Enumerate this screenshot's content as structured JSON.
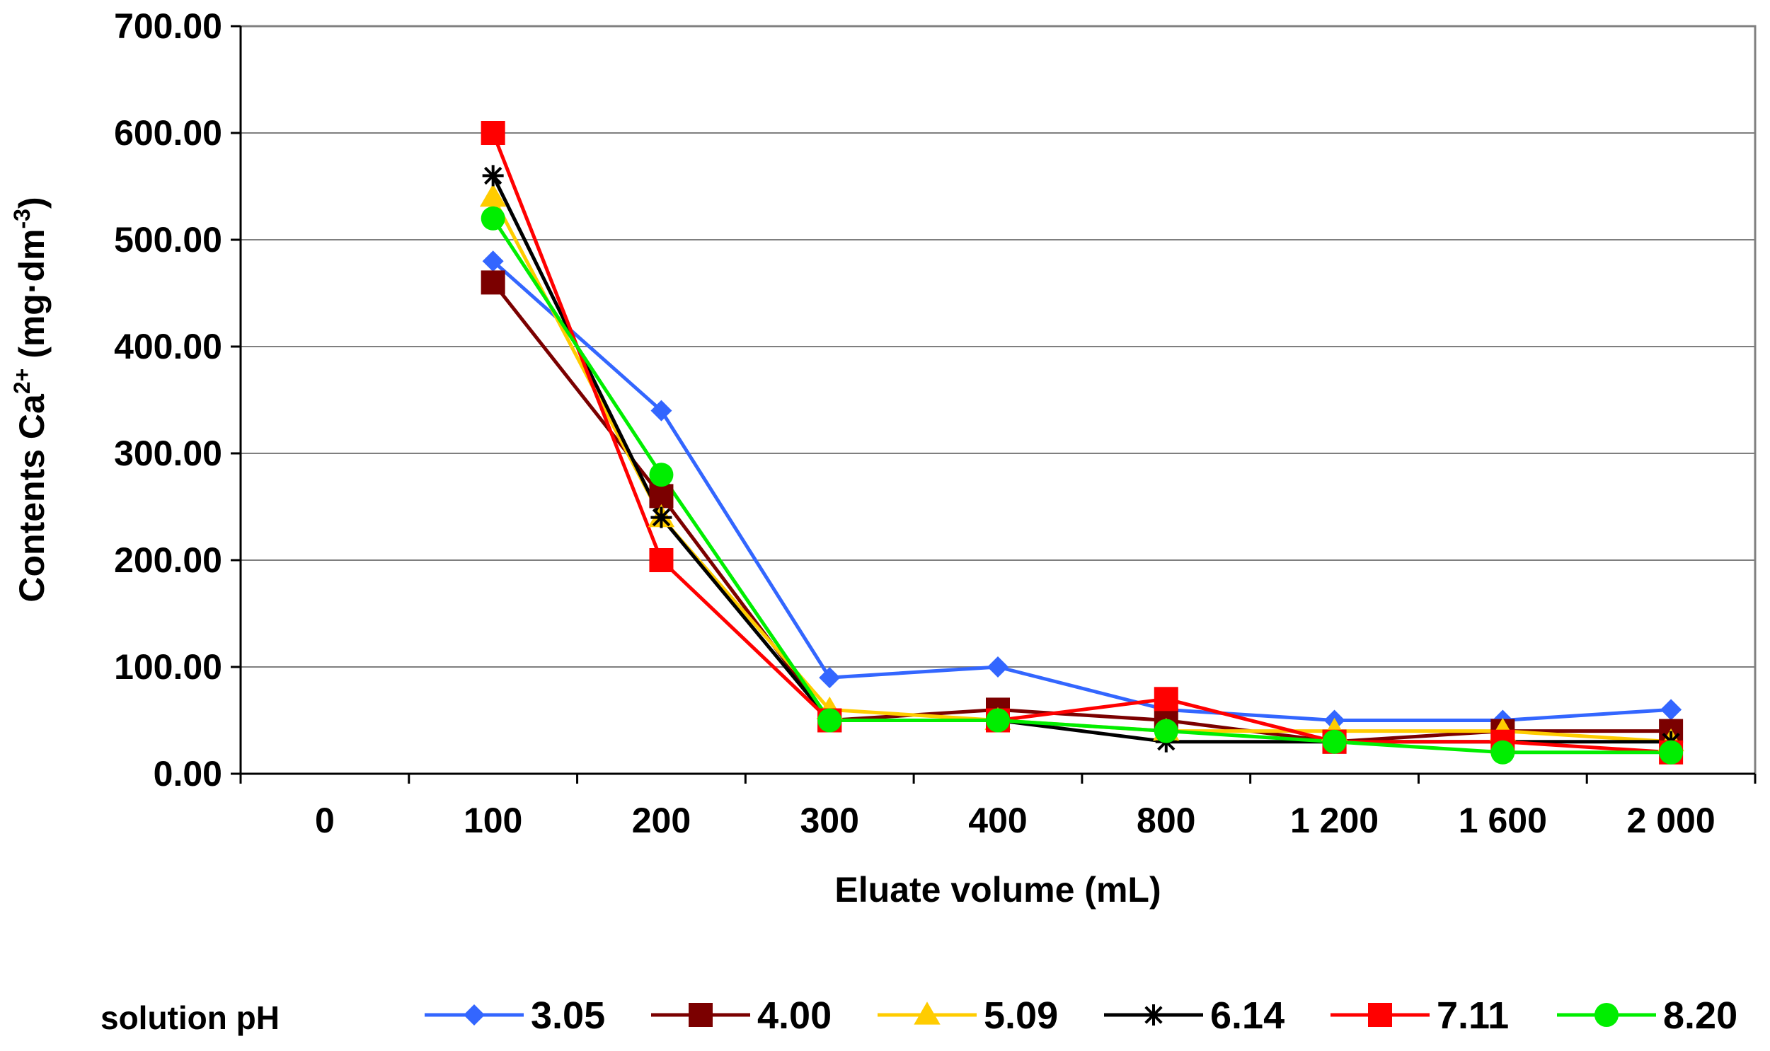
{
  "chart_data": {
    "type": "line",
    "title": "",
    "xlabel": "Eluate volume (mL)",
    "ylabel": {
      "prefix": "Contents Ca",
      "sup": "2+",
      "middle": " (mg·dm",
      "sup2": "-3",
      "suffix": ")"
    },
    "categories": [
      "0",
      "100",
      "200",
      "300",
      "400",
      "800",
      "1 200",
      "1 600",
      "2 000"
    ],
    "ylim": [
      0,
      700
    ],
    "yticks": [
      "0.00",
      "100.00",
      "200.00",
      "300.00",
      "400.00",
      "500.00",
      "600.00",
      "700.00"
    ],
    "grid": "horizontal",
    "legend": {
      "title": "solution pH",
      "position": "bottom"
    },
    "series": [
      {
        "name": "3.05",
        "color": "#3366ff",
        "marker": "diamond",
        "values": [
          null,
          480,
          340,
          90,
          100,
          60,
          50,
          50,
          60
        ]
      },
      {
        "name": "4.00",
        "color": "#7b0000",
        "marker": "square",
        "values": [
          null,
          460,
          260,
          50,
          60,
          50,
          30,
          40,
          40
        ]
      },
      {
        "name": "5.09",
        "color": "#ffcc00",
        "marker": "triangle",
        "values": [
          null,
          540,
          240,
          60,
          50,
          40,
          40,
          40,
          30
        ]
      },
      {
        "name": "6.14",
        "color": "#000000",
        "marker": "star",
        "values": [
          null,
          560,
          240,
          50,
          50,
          30,
          30,
          30,
          30
        ]
      },
      {
        "name": "7.11",
        "color": "#ff0000",
        "marker": "square",
        "values": [
          null,
          600,
          200,
          50,
          50,
          70,
          30,
          30,
          20
        ]
      },
      {
        "name": "8.20",
        "color": "#00ee00",
        "marker": "circle",
        "values": [
          null,
          520,
          280,
          50,
          50,
          40,
          30,
          20,
          20
        ]
      }
    ]
  }
}
